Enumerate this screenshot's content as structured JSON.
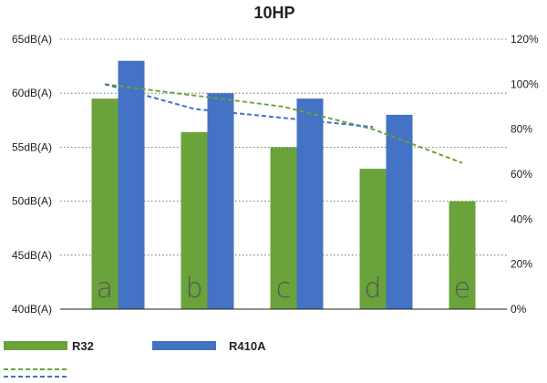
{
  "chart_data": {
    "type": "bar",
    "title": "10HP",
    "categories": [
      "a",
      "b",
      "c",
      "d",
      "e"
    ],
    "series": [
      {
        "name": "R32",
        "values": [
          59.5,
          56.4,
          55.0,
          53.0,
          50.0
        ],
        "color": "#6aa33b"
      },
      {
        "name": "R410A",
        "values": [
          63.0,
          60.0,
          59.5,
          58.0,
          null
        ],
        "color": "#4472c4"
      }
    ],
    "secondary_series": [
      {
        "name": "",
        "type": "line",
        "dashed": true,
        "color": "#6aa33b",
        "values": [
          100,
          95,
          90,
          80,
          65
        ]
      },
      {
        "name": "",
        "type": "line",
        "dashed": true,
        "color": "#4472c4",
        "values": [
          100,
          89,
          85,
          81,
          null
        ]
      }
    ],
    "y_left": {
      "ylim": [
        40,
        65
      ],
      "ticks": [
        40,
        45,
        50,
        55,
        60,
        65
      ],
      "tick_labels": [
        "40dB(A)",
        "45dB(A)",
        "50dB(A)",
        "55dB(A)",
        "60dB(A)",
        "65dB(A)"
      ]
    },
    "y_right": {
      "ylim": [
        0,
        120
      ],
      "ticks": [
        0,
        20,
        40,
        60,
        80,
        100,
        120
      ],
      "tick_labels": [
        "0%",
        "20%",
        "40%",
        "60%",
        "80%",
        "100%",
        "120%"
      ]
    },
    "grid": true,
    "legend": "bottom"
  }
}
